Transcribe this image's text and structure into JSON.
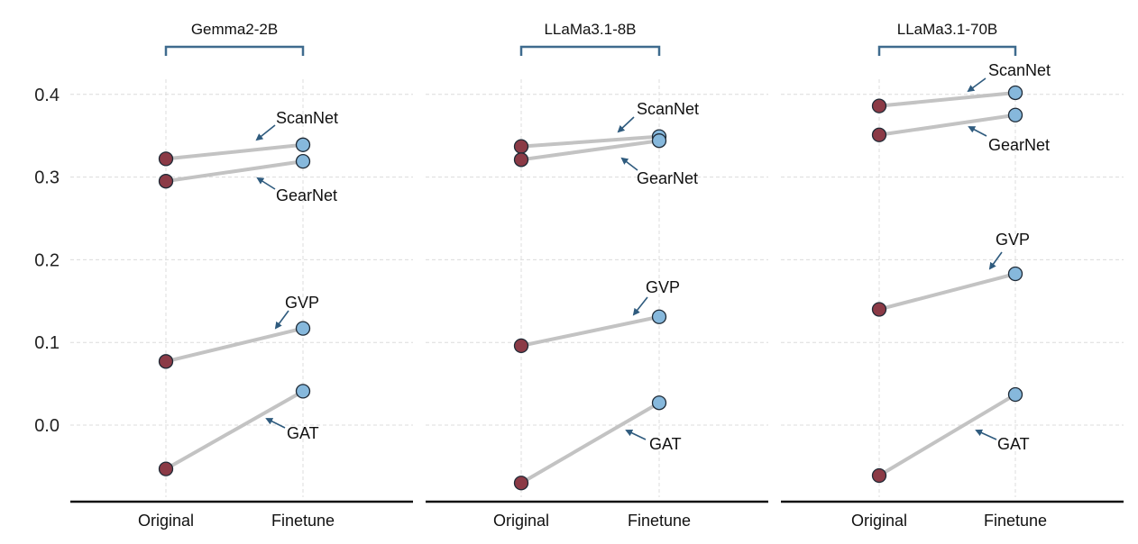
{
  "chart_data": [
    {
      "type": "slope",
      "title": "Gemma2-2B",
      "categories": [
        "Original",
        "Finetune"
      ],
      "ylim": [
        -0.09,
        0.46
      ],
      "yticks": [
        "0.0",
        "0.1",
        "0.2",
        "0.3",
        "0.4"
      ],
      "grid": true,
      "series": [
        {
          "name": "ScanNet",
          "values": [
            0.322,
            0.339
          ]
        },
        {
          "name": "GearNet",
          "values": [
            0.295,
            0.319
          ]
        },
        {
          "name": "GVP",
          "values": [
            0.077,
            0.117
          ]
        },
        {
          "name": "GAT",
          "values": [
            -0.053,
            0.041
          ]
        }
      ]
    },
    {
      "type": "slope",
      "title": "LLaMa3.1-8B",
      "categories": [
        "Original",
        "Finetune"
      ],
      "ylim": [
        -0.09,
        0.46
      ],
      "grid": true,
      "series": [
        {
          "name": "ScanNet",
          "values": [
            0.337,
            0.349
          ]
        },
        {
          "name": "GearNet",
          "values": [
            0.321,
            0.344
          ]
        },
        {
          "name": "GVP",
          "values": [
            0.096,
            0.131
          ]
        },
        {
          "name": "GAT",
          "values": [
            -0.07,
            0.027
          ]
        }
      ]
    },
    {
      "type": "slope",
      "title": "LLaMa3.1-70B",
      "categories": [
        "Original",
        "Finetune"
      ],
      "ylim": [
        -0.09,
        0.46
      ],
      "grid": true,
      "series": [
        {
          "name": "ScanNet",
          "values": [
            0.386,
            0.402
          ]
        },
        {
          "name": "GearNet",
          "values": [
            0.351,
            0.375
          ]
        },
        {
          "name": "GVP",
          "values": [
            0.14,
            0.183
          ]
        },
        {
          "name": "GAT",
          "values": [
            -0.061,
            0.037
          ]
        }
      ]
    }
  ],
  "colors": {
    "original_marker": "#8b3a46",
    "finetune_marker": "#86b8dc",
    "marker_edge": "#1f2a36",
    "connector": "#c3c3c3",
    "annotation_arrow": "#2f5b7e",
    "bracket": "#3f6b8e",
    "grid": "#dcdcdc",
    "axis": "#111111"
  }
}
